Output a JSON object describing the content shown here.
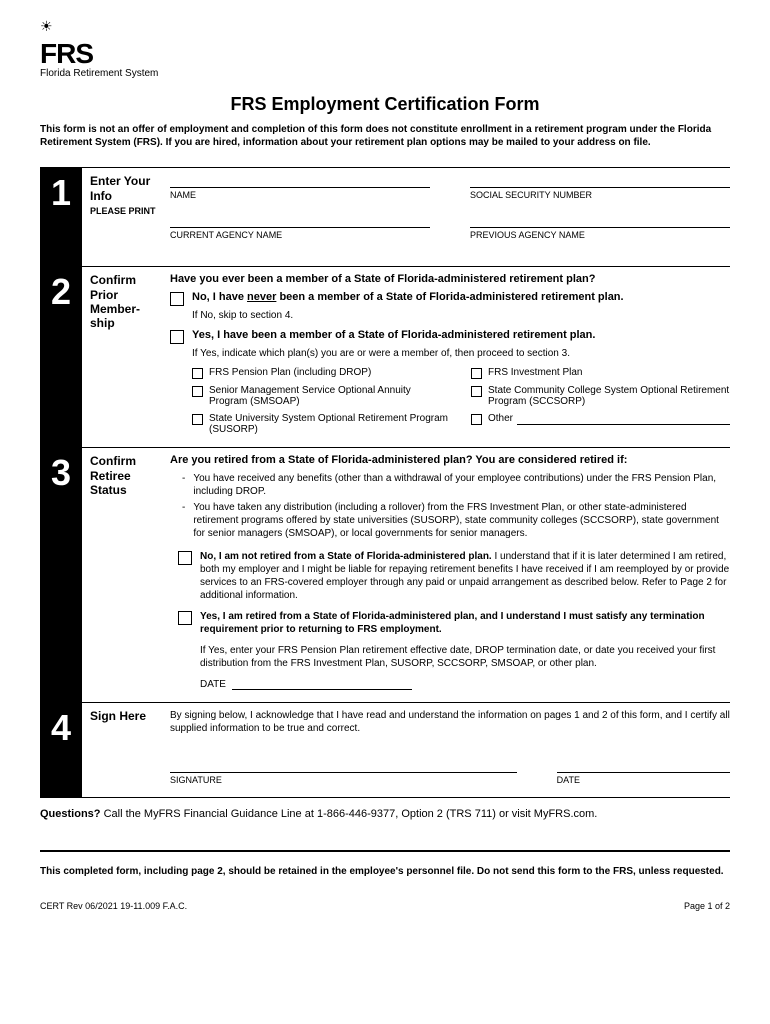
{
  "logo": {
    "brand": "FRS",
    "subtitle": "Florida Retirement System"
  },
  "title": "FRS Employment Certification Form",
  "disclaimer": "This form is not an offer of employment and completion of this form does not constitute enrollment in a retirement program under the Florida Retirement System (FRS). If you are hired, information about your retirement plan options may be mailed to your address on file.",
  "section1": {
    "num": "1",
    "label": "Enter Your Info",
    "sublabel": "PLEASE PRINT",
    "fields": {
      "name": "NAME",
      "ssn": "SOCIAL SECURITY NUMBER",
      "currentAgency": "CURRENT AGENCY NAME",
      "previousAgency": "PREVIOUS AGENCY NAME"
    }
  },
  "section2": {
    "num": "2",
    "label": "Confirm Prior Member-ship",
    "question": "Have you ever been a member of a State of Florida-administered retirement plan?",
    "noPrefix": "No, I have ",
    "noUnderline": "never",
    "noSuffix": " been a member of a State of Florida-administered retirement plan.",
    "noSub": "If No, skip to section 4.",
    "yes": "Yes, I have been a member of a State of Florida-administered retirement plan.",
    "yesSub": "If Yes, indicate which plan(s) you are or were a member of, then proceed to section 3.",
    "plans": {
      "p1": "FRS Pension Plan (including DROP)",
      "p2": "FRS Investment Plan",
      "p3": "Senior Management Service Optional Annuity Program (SMSOAP)",
      "p4": "State Community College System Optional Retirement Program (SCCSORP)",
      "p5": "State University System Optional Retirement Program (SUSORP)",
      "p6": "Other"
    }
  },
  "section3": {
    "num": "3",
    "label": "Confirm Retiree Status",
    "question": "Are you retired from a State of Florida-administered plan? You are considered retired if:",
    "bullet1": "You have received any benefits (other than a withdrawal of your employee contributions) under the FRS Pension Plan, including DROP.",
    "bullet2": "You have taken any distribution (including a rollover) from the FRS Investment Plan, or other state-administered retirement programs offered by state universities (SUSORP), state community colleges (SCCSORP), state government for senior managers (SMSOAP), or local governments for senior managers.",
    "noBold": "No, I am not retired from a State of Florida-administered plan.",
    "noRest": " I understand that if it is later determined I am retired, both my employer and I might be liable for repaying retirement benefits I have received if I am reemployed by or provide services to an FRS-covered employer through any paid or unpaid arrangement as described below. Refer to Page 2 for additional information.",
    "yesBold": "Yes, I am retired from a State of Florida-administered plan, and I understand I must satisfy any termination requirement prior to returning to FRS employment.",
    "yesSub": "If Yes, enter your FRS Pension Plan retirement effective date, DROP termination date, or date you received your first distribution from the FRS Investment Plan, SUSORP, SCCSORP, SMSOAP, or other plan.",
    "dateLabel": "DATE"
  },
  "section4": {
    "num": "4",
    "label": "Sign Here",
    "text": "By signing below, I acknowledge that I have read and understand the information on pages 1 and 2 of this form, and I certify all supplied information to be true and correct.",
    "sig": "SIGNATURE",
    "date": "DATE"
  },
  "questionsLabel": "Questions?",
  "questionsText": " Call the MyFRS Financial Guidance Line at 1-866-446-9377, Option 2 (TRS 711) or visit MyFRS.com.",
  "retain": "This completed form, including page 2, should be retained in the employee's personnel file. Do not send this form to the FRS, unless requested.",
  "footer": {
    "left": "CERT Rev 06/2021 19-11.009 F.A.C.",
    "right": "Page 1 of 2"
  }
}
